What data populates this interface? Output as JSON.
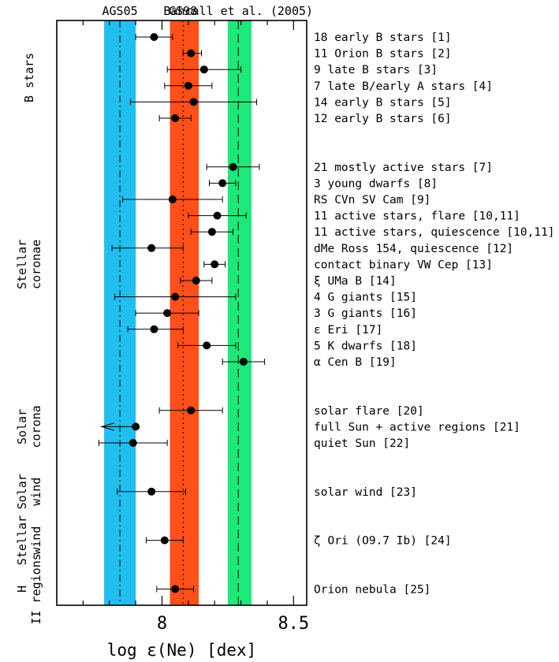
{
  "chart_data": {
    "type": "scatter",
    "xlabel": "log ε(Ne) [dex]",
    "xlim": [
      7.6,
      8.55
    ],
    "xticks": [
      {
        "value": 8.0,
        "label": "8"
      },
      {
        "value": 8.5,
        "label": "8.5"
      }
    ],
    "xminor": [
      7.7,
      7.8,
      7.9,
      8.1,
      8.2,
      8.3,
      8.4
    ],
    "reference_bands": [
      {
        "name": "AGS05",
        "center": 7.84,
        "low": 7.78,
        "high": 7.9,
        "color": "#21bff0",
        "line": "dashdot"
      },
      {
        "name": "GS98",
        "center": 8.08,
        "low": 8.03,
        "high": 8.14,
        "color": "#ff4f1a",
        "line": "dotted"
      },
      {
        "name": "Bahcall et al. (2005)",
        "center": 8.29,
        "low": 8.25,
        "high": 8.34,
        "color": "#1ee87a",
        "line": "dashed"
      }
    ],
    "groups": [
      {
        "label": "B stars",
        "first": 0,
        "last": 5
      },
      {
        "label": "Stellar coronae",
        "first": 6,
        "last": 18
      },
      {
        "label": "Solar corona",
        "first": 19,
        "last": 21
      },
      {
        "label": "Solar wind",
        "first": 22,
        "last": 22
      },
      {
        "label": "Stellar wind",
        "first": 23,
        "last": 23
      },
      {
        "label": "H II regions",
        "first": 24,
        "last": 24
      }
    ],
    "points": [
      {
        "row": 0,
        "label": "18 early B stars [1]",
        "value": 7.97,
        "low": 7.9,
        "high": 8.04
      },
      {
        "row": 1,
        "label": "11 Orion B stars [2]",
        "value": 8.11,
        "low": 8.08,
        "high": 8.15
      },
      {
        "row": 2,
        "label": "9 late B stars [3]",
        "value": 8.16,
        "low": 8.02,
        "high": 8.3
      },
      {
        "row": 3,
        "label": "7 late B/early A stars [4]",
        "value": 8.1,
        "low": 8.01,
        "high": 8.19
      },
      {
        "row": 4,
        "label": "14 early B stars [5]",
        "value": 8.12,
        "low": 7.88,
        "high": 8.36
      },
      {
        "row": 5,
        "label": "12 early B stars [6]",
        "value": 8.05,
        "low": 7.99,
        "high": 8.11
      },
      {
        "row": 8,
        "label": "21 mostly active stars [7]",
        "value": 8.27,
        "low": 8.17,
        "high": 8.37
      },
      {
        "row": 9,
        "label": "3 young dwarfs [8]",
        "value": 8.23,
        "low": 8.18,
        "high": 8.28
      },
      {
        "row": 10,
        "label": "RS CVn SV Cam [9]",
        "value": 8.04,
        "low": 7.85,
        "high": 8.23
      },
      {
        "row": 11,
        "label": "11 active stars, flare [10,11]",
        "value": 8.21,
        "low": 8.1,
        "high": 8.32
      },
      {
        "row": 12,
        "label": "11 active stars, quiescence [10,11]",
        "value": 8.19,
        "low": 8.11,
        "high": 8.27
      },
      {
        "row": 13,
        "label": "dMe Ross 154, quiescence [12]",
        "value": 7.96,
        "low": 7.81,
        "high": 8.08
      },
      {
        "row": 14,
        "label": "contact binary VW Cep [13]",
        "value": 8.2,
        "low": 8.16,
        "high": 8.24
      },
      {
        "row": 15,
        "label": "ξ UMa B [14]",
        "value": 8.13,
        "low": 8.07,
        "high": 8.19
      },
      {
        "row": 16,
        "label": "4 G giants [15]",
        "value": 8.05,
        "low": 7.82,
        "high": 8.28
      },
      {
        "row": 17,
        "label": "3 G giants [16]",
        "value": 8.02,
        "low": 7.9,
        "high": 8.14
      },
      {
        "row": 18,
        "label": "ε Eri [17]",
        "value": 7.97,
        "low": 7.87,
        "high": 8.08
      },
      {
        "row": 19,
        "label": "5 K dwarfs [18]",
        "value": 8.17,
        "low": 8.06,
        "high": 8.28
      },
      {
        "row": 20,
        "label": "α Cen B [19]",
        "value": 8.31,
        "low": 8.23,
        "high": 8.39
      },
      {
        "row": 23,
        "label": "solar flare [20]",
        "value": 8.11,
        "low": 7.99,
        "high": 8.23
      },
      {
        "row": 24,
        "label": "full Sun + active regions [21]",
        "value": 7.9,
        "upper_limit": true,
        "arrow_to": 7.77
      },
      {
        "row": 25,
        "label": "quiet Sun [22]",
        "value": 7.89,
        "low": 7.76,
        "high": 8.02
      },
      {
        "row": 28,
        "label": "solar wind [23]",
        "value": 7.96,
        "low": 7.83,
        "high": 8.09
      },
      {
        "row": 31,
        "label": "ζ Ori (O9.7 Ib) [24]",
        "value": 8.01,
        "low": 7.94,
        "high": 8.08
      },
      {
        "row": 34,
        "label": "Orion nebula [25]",
        "value": 8.05,
        "low": 7.98,
        "high": 8.12
      }
    ]
  }
}
